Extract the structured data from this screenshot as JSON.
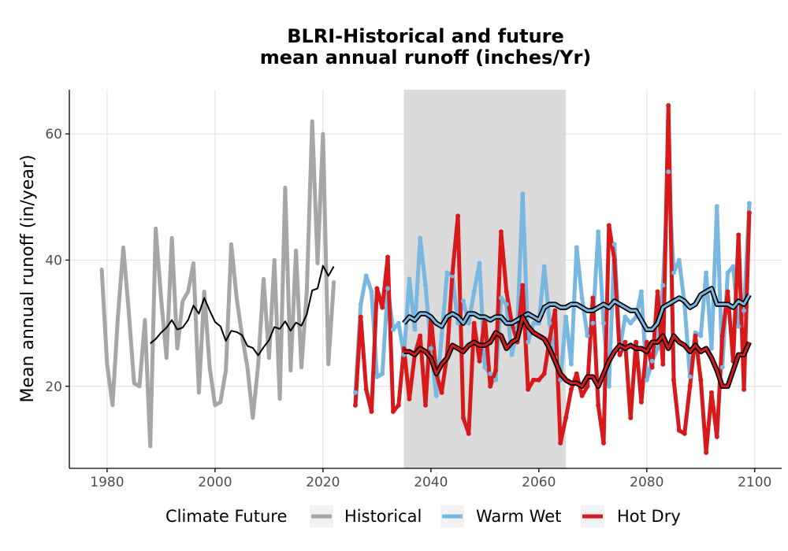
{
  "chart_data": {
    "type": "line",
    "title_line1": "BLRI-Historical and future",
    "title_line2": "mean annual runoff (inches/Yr)",
    "xlabel": "",
    "ylabel": "Mean annual runoff (in/year)",
    "xlim": [
      1973,
      2105
    ],
    "ylim": [
      7,
      67
    ],
    "x_ticks": [
      1980,
      2000,
      2020,
      2040,
      2060,
      2080,
      2100
    ],
    "y_ticks": [
      20,
      40,
      60
    ],
    "grid": true,
    "shaded_period": [
      2035,
      2065
    ],
    "legend": {
      "position": "bottom",
      "title": "Climate Future",
      "entries": [
        "Historical",
        "Warm Wet",
        "Hot Dry"
      ]
    },
    "colors": {
      "historical": "#a6a6a6",
      "warm_wet": "#78b7e0",
      "hot_dry": "#d7191c",
      "smooth": "#000000",
      "shade": "#d9d9d9"
    },
    "series": [
      {
        "name": "Historical",
        "years": [
          1979,
          1980,
          1981,
          1982,
          1983,
          1984,
          1985,
          1986,
          1987,
          1988,
          1989,
          1990,
          1991,
          1992,
          1993,
          1994,
          1995,
          1996,
          1997,
          1998,
          1999,
          2000,
          2001,
          2002,
          2003,
          2004,
          2005,
          2006,
          2007,
          2008,
          2009,
          2010,
          2011,
          2012,
          2013,
          2014,
          2015,
          2016,
          2017,
          2018,
          2019,
          2020,
          2021,
          2022
        ],
        "values": [
          38.5,
          23.5,
          17,
          31,
          42,
          32,
          20.5,
          20,
          30.5,
          10.5,
          45,
          34,
          24.5,
          43.5,
          26,
          33.5,
          35,
          39.5,
          19,
          35,
          23,
          17,
          17.5,
          22.5,
          42.5,
          34,
          28,
          23,
          15,
          23.5,
          37,
          24.5,
          40,
          18,
          51.5,
          22.5,
          41.5,
          23,
          35,
          62,
          39.5,
          60,
          23.5,
          36.5
        ]
      },
      {
        "name": "Warm Wet",
        "years": [
          2026,
          2027,
          2028,
          2029,
          2030,
          2031,
          2032,
          2033,
          2034,
          2035,
          2036,
          2037,
          2038,
          2039,
          2040,
          2041,
          2042,
          2043,
          2044,
          2045,
          2046,
          2047,
          2048,
          2049,
          2050,
          2051,
          2052,
          2053,
          2054,
          2055,
          2056,
          2057,
          2058,
          2059,
          2060,
          2061,
          2062,
          2063,
          2064,
          2065,
          2066,
          2067,
          2068,
          2069,
          2070,
          2071,
          2072,
          2073,
          2074,
          2075,
          2076,
          2077,
          2078,
          2079,
          2080,
          2081,
          2082,
          2083,
          2084,
          2085,
          2086,
          2087,
          2088,
          2089,
          2090,
          2091,
          2092,
          2093,
          2094,
          2095,
          2096,
          2097,
          2098,
          2099
        ],
        "values": [
          19,
          33,
          37.5,
          35,
          21.5,
          22,
          35.5,
          29,
          30,
          25,
          37,
          29,
          43.5,
          36,
          26,
          18.5,
          28,
          38,
          37.5,
          30,
          33.5,
          30,
          35,
          39.5,
          23,
          22,
          21,
          34,
          33,
          25,
          29,
          50.5,
          27,
          30,
          30,
          39,
          30,
          24.5,
          21,
          31,
          23.5,
          42,
          34,
          28,
          30,
          44.5,
          30,
          20,
          42.5,
          26,
          31,
          30,
          31,
          35,
          21,
          24,
          26,
          36,
          54,
          38,
          40,
          33,
          21.5,
          28.5,
          28,
          38,
          26,
          48.5,
          23,
          38,
          39,
          29.5,
          32,
          49
        ]
      },
      {
        "name": "Hot Dry",
        "years": [
          2026,
          2027,
          2028,
          2029,
          2030,
          2031,
          2032,
          2033,
          2034,
          2035,
          2036,
          2037,
          2038,
          2039,
          2040,
          2041,
          2042,
          2043,
          2044,
          2045,
          2046,
          2047,
          2048,
          2049,
          2050,
          2051,
          2052,
          2053,
          2054,
          2055,
          2056,
          2057,
          2058,
          2059,
          2060,
          2061,
          2062,
          2063,
          2064,
          2065,
          2066,
          2067,
          2068,
          2069,
          2070,
          2071,
          2072,
          2073,
          2074,
          2075,
          2076,
          2077,
          2078,
          2079,
          2080,
          2081,
          2082,
          2083,
          2084,
          2085,
          2086,
          2087,
          2088,
          2089,
          2090,
          2091,
          2092,
          2093,
          2094,
          2095,
          2096,
          2097,
          2098,
          2099
        ],
        "values": [
          17,
          31,
          19.5,
          16,
          35.5,
          32.5,
          40.5,
          16,
          17,
          26,
          18,
          25,
          28,
          17,
          31,
          22,
          19,
          25,
          38,
          47,
          15,
          12.5,
          30,
          24,
          31,
          20,
          22.5,
          44.5,
          35,
          30,
          27,
          36,
          19.5,
          21,
          21,
          22,
          27.5,
          32,
          11,
          15,
          19.5,
          22,
          18.5,
          20,
          34,
          17,
          11,
          45.5,
          40,
          25,
          27,
          15,
          27,
          17.5,
          27,
          23,
          35,
          23.5,
          64.5,
          21,
          13,
          12.5,
          20,
          28,
          21,
          9.5,
          19,
          12,
          28,
          35,
          24,
          44,
          19.5,
          47.5
        ]
      },
      {
        "name": "",
        "years": [
          1988,
          1989,
          1990,
          1991,
          1992,
          1993,
          1994,
          1995,
          1996,
          1997,
          1998,
          1999,
          2000,
          2001,
          2002,
          2003,
          2004,
          2005,
          2006,
          2007,
          2008,
          2009,
          2010,
          2011,
          2012,
          2013,
          2014,
          2015,
          2016,
          2017,
          2018,
          2019,
          2020,
          2021,
          2022
        ],
        "values": [
          26.8,
          27.5,
          28.5,
          29.3,
          30.5,
          29,
          29.3,
          30.5,
          32.8,
          31.5,
          34,
          32,
          30.2,
          29.5,
          27.2,
          28.8,
          28.6,
          28.1,
          26.4,
          26.1,
          24.9,
          26.2,
          27.3,
          29.4,
          29.1,
          30.3,
          28.8,
          30.1,
          29.6,
          31.4,
          35.2,
          35.5,
          39.1,
          37.5,
          39
        ]
      },
      {
        "name": "",
        "years": [
          2035,
          2036,
          2037,
          2038,
          2039,
          2040,
          2041,
          2042,
          2043,
          2044,
          2045,
          2046,
          2047,
          2048,
          2049,
          2050,
          2051,
          2052,
          2053,
          2054,
          2055,
          2056,
          2057,
          2058,
          2059,
          2060,
          2061,
          2062,
          2063,
          2064,
          2065,
          2066,
          2067,
          2068,
          2069,
          2070,
          2071,
          2072,
          2073,
          2074,
          2075,
          2076,
          2077,
          2078,
          2079,
          2080,
          2081,
          2082,
          2083,
          2084,
          2085,
          2086,
          2087,
          2088,
          2089,
          2090,
          2091,
          2092,
          2093,
          2094,
          2095,
          2096,
          2097,
          2098,
          2099
        ],
        "values": [
          30,
          31,
          30.5,
          31.5,
          31.5,
          31,
          30,
          29.5,
          31,
          31.5,
          31,
          30,
          31.5,
          31.5,
          31,
          31,
          30.5,
          31,
          31,
          30,
          30,
          30.5,
          31,
          31.5,
          31,
          30.5,
          32.5,
          33,
          33,
          32.5,
          32.5,
          33,
          33,
          32.5,
          32,
          32,
          32.5,
          33,
          32.5,
          33.5,
          33,
          32.5,
          32,
          32,
          30.5,
          29,
          29,
          30,
          32.5,
          33,
          33.5,
          34,
          33.5,
          32.5,
          33,
          34.5,
          35,
          35.5,
          33,
          33,
          33,
          32.5,
          33.5,
          33,
          34.5
        ]
      },
      {
        "name": "",
        "years": [
          2035,
          2036,
          2037,
          2038,
          2039,
          2040,
          2041,
          2042,
          2043,
          2044,
          2045,
          2046,
          2047,
          2048,
          2049,
          2050,
          2051,
          2052,
          2053,
          2054,
          2055,
          2056,
          2057,
          2058,
          2059,
          2060,
          2061,
          2062,
          2063,
          2064,
          2065,
          2066,
          2067,
          2068,
          2069,
          2070,
          2071,
          2072,
          2073,
          2074,
          2075,
          2076,
          2077,
          2078,
          2079,
          2080,
          2081,
          2082,
          2083,
          2084,
          2085,
          2086,
          2087,
          2088,
          2089,
          2090,
          2091,
          2092,
          2093,
          2094,
          2095,
          2096,
          2097,
          2098,
          2099
        ],
        "values": [
          25.5,
          25.5,
          25,
          26,
          25.5,
          24.5,
          22,
          23.5,
          24.5,
          26.5,
          26,
          25.5,
          26.5,
          27,
          26.5,
          26.5,
          27,
          28.5,
          28,
          26,
          27,
          27.5,
          31,
          29.5,
          28.5,
          28,
          27.5,
          26,
          24,
          22,
          21,
          20.5,
          20.5,
          20,
          21.5,
          21.5,
          20,
          22,
          24,
          25.5,
          26.5,
          26,
          26.5,
          26,
          26,
          25.5,
          27,
          27,
          28,
          26,
          28,
          27,
          26.5,
          25.5,
          26.5,
          25.5,
          26,
          24.5,
          22.5,
          20,
          20,
          22.5,
          25,
          25,
          27
        ]
      }
    ]
  }
}
